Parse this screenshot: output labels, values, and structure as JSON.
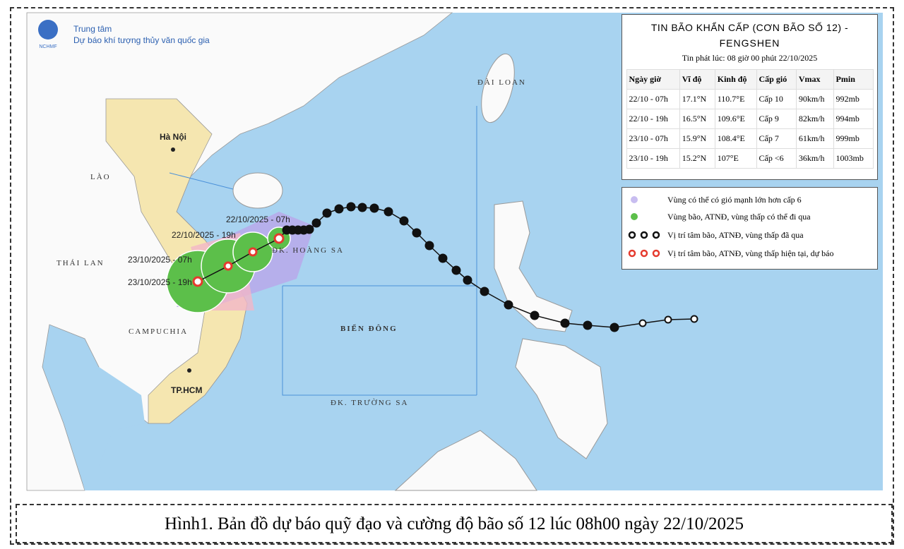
{
  "header": {
    "org_line1": "Trung tâm",
    "org_line2": "Dự báo khí tượng thủy văn quốc gia",
    "logo_text": "NCHMF"
  },
  "info": {
    "title_line1": "TIN BÃO KHẨN CẤP (CƠN BÃO SỐ 12) -",
    "title_line2": "FENGSHEN",
    "issued": "Tin phát lúc: 08 giờ 00 phút 22/10/2025",
    "table": {
      "headers": [
        "Ngày giờ",
        "Vĩ độ",
        "Kinh độ",
        "Cấp gió",
        "Vmax",
        "Pmin"
      ],
      "rows": [
        [
          "22/10 - 07h",
          "17.1°N",
          "110.7°E",
          "Cấp 10",
          "90km/h",
          "992mb"
        ],
        [
          "22/10 - 19h",
          "16.5°N",
          "109.6°E",
          "Cấp 9",
          "82km/h",
          "994mb"
        ],
        [
          "23/10 - 07h",
          "15.9°N",
          "108.4°E",
          "Cấp 7",
          "61km/h",
          "999mb"
        ],
        [
          "23/10 - 19h",
          "15.2°N",
          "107°E",
          "Cấp <6",
          "36km/h",
          "1003mb"
        ]
      ]
    }
  },
  "legend": [
    "Vùng có thể có gió mạnh lớn hơn cấp 6",
    "Vùng bão, ATNĐ, vùng thấp có thể đi qua",
    "Vị trí tâm bão, ATNĐ, vùng thấp đã qua",
    "Vị trí tâm bão, ATNĐ, vùng thấp hiện tại, dự báo"
  ],
  "map_labels": {
    "hanoi": "Hà Nội",
    "laos": "LÀO",
    "thailand": "THÁI LAN",
    "cambodia": "CAMPUCHIA",
    "hcm": "TP.HCM",
    "sea": "BIỂN ĐÔNG",
    "paracel": "ĐK. HOÀNG SA",
    "spratly": "ĐK. TRƯỜNG SA",
    "taiwan": "ĐÀI LOAN"
  },
  "forecast_labels": [
    "22/10/2025 - 07h",
    "22/10/2025 - 19h",
    "23/10/2025 - 07h",
    "23/10/2025 - 19h"
  ],
  "caption": "Hình1. Bản đồ dự báo quỹ đạo và cường độ bão số 12 lúc 08h00 ngày 22/10/2025"
}
